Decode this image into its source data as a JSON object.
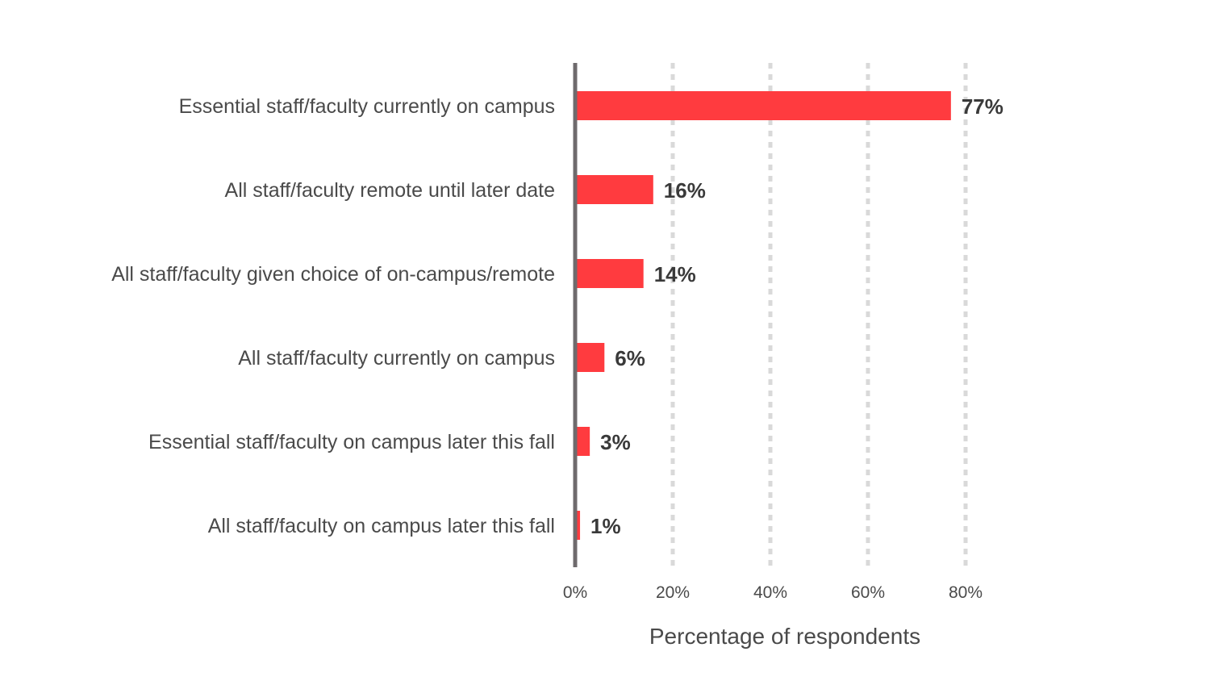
{
  "chart_data": {
    "type": "bar",
    "orientation": "horizontal",
    "categories": [
      "Essential staff/faculty currently on campus",
      "All staff/faculty remote until later date",
      "All staff/faculty given choice of on-campus/remote",
      "All staff/faculty currently on campus",
      "Essential staff/faculty on campus later this fall",
      "All staff/faculty on campus later this fall"
    ],
    "values": [
      77,
      16,
      14,
      6,
      3,
      1
    ],
    "value_labels": [
      "77%",
      "16%",
      "14%",
      "6%",
      "3%",
      "1%"
    ],
    "xlabel": "Percentage of respondents",
    "ylabel": "",
    "xlim": [
      0,
      80
    ],
    "xticks": [
      0,
      20,
      40,
      60,
      80
    ],
    "xtick_labels": [
      "0%",
      "20%",
      "40%",
      "60%",
      "80%"
    ],
    "grid": "vertical dashed",
    "legend": "none",
    "colors": {
      "bar": "#ff3b3f",
      "axis": "#6e6a6c",
      "grid": "#d9d9d9"
    }
  }
}
